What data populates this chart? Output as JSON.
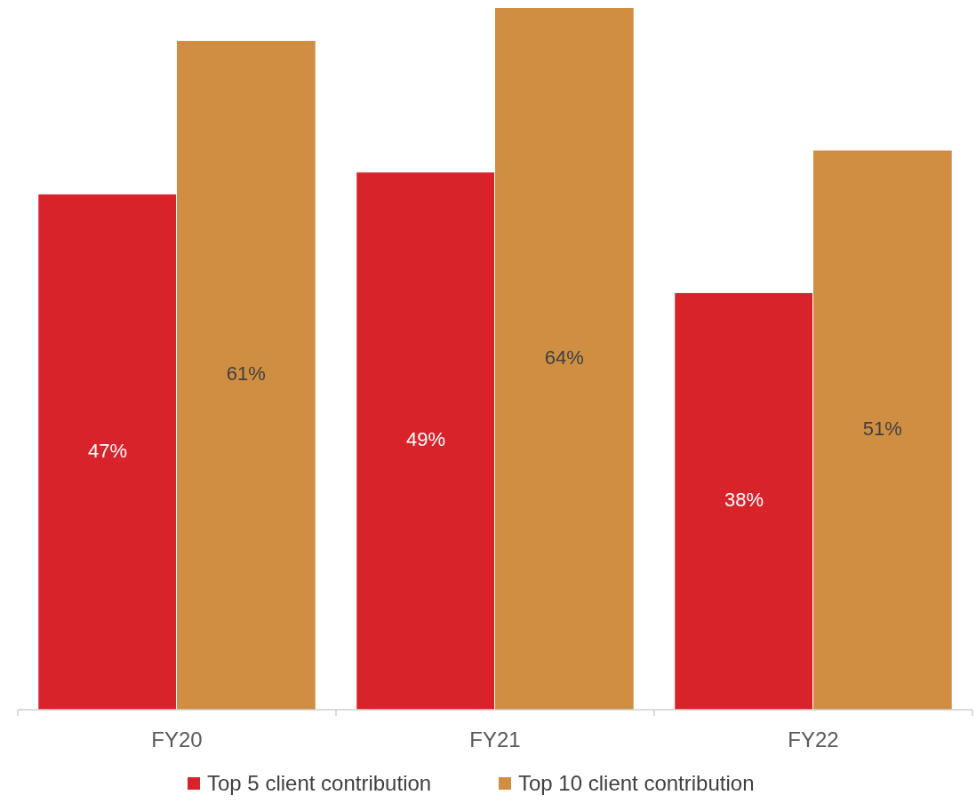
{
  "chart_data": {
    "type": "bar",
    "categories": [
      "FY20",
      "FY21",
      "FY22"
    ],
    "series": [
      {
        "name": "Top 5 client contribution",
        "color": "#d9232a",
        "values": [
          47,
          49,
          38
        ],
        "value_labels": [
          "47%",
          "49%",
          "38%"
        ]
      },
      {
        "name": "Top 10 client contribution",
        "color": "#cf8e42",
        "values": [
          61,
          64,
          51
        ],
        "value_labels": [
          "61%",
          "64%",
          "51%"
        ]
      }
    ],
    "legend": "bottom"
  }
}
